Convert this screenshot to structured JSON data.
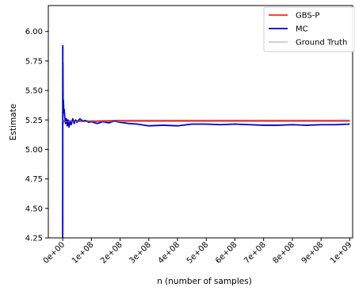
{
  "chart_data": {
    "type": "line",
    "title": "",
    "xlabel": "n (number of samples)",
    "ylabel": "Estimate",
    "xlim": [
      -50000000,
      1010000000
    ],
    "ylim": [
      4.25,
      6.22
    ],
    "grid": false,
    "legend_position": "top-right",
    "x_ticks": [
      0,
      100000000,
      200000000,
      300000000,
      400000000,
      500000000,
      600000000,
      700000000,
      800000000,
      900000000,
      1000000000
    ],
    "x_tick_labels": [
      "0e+00",
      "1e+08",
      "2e+08",
      "3e+08",
      "4e+08",
      "5e+08",
      "6e+08",
      "7e+08",
      "8e+08",
      "9e+08",
      "1e+09"
    ],
    "y_ticks": [
      4.25,
      4.5,
      4.75,
      5.0,
      5.25,
      5.5,
      5.75,
      6.0
    ],
    "y_tick_labels": [
      "4.25",
      "4.50",
      "4.75",
      "5.00",
      "5.25",
      "5.50",
      "5.75",
      "6.00"
    ],
    "series": [
      {
        "name": "GBS-P",
        "color": "#ff0000",
        "x": [
          0,
          500000,
          1000000,
          2000000,
          3000000,
          5000000,
          10000000,
          30000000,
          60000000,
          100000000,
          200000000,
          300000000,
          500000000,
          700000000,
          1000000000
        ],
        "y": [
          5.21,
          5.24,
          5.22,
          5.23,
          5.24,
          5.24,
          5.24,
          5.24,
          5.24,
          5.24,
          5.245,
          5.245,
          5.245,
          5.245,
          5.245
        ]
      },
      {
        "name": "MC",
        "color": "#0000cc",
        "x": [
          0,
          150000,
          300000,
          500000,
          800000,
          1200000,
          1700000,
          2300000,
          3000000,
          4000000,
          5000000,
          7000000,
          10000000,
          13000000,
          16000000,
          19000000,
          22000000,
          26000000,
          30000000,
          35000000,
          40000000,
          45000000,
          50000000,
          60000000,
          70000000,
          80000000,
          90000000,
          100000000,
          120000000,
          140000000,
          160000000,
          180000000,
          200000000,
          230000000,
          260000000,
          300000000,
          350000000,
          400000000,
          450000000,
          500000000,
          550000000,
          600000000,
          650000000,
          700000000,
          750000000,
          800000000,
          850000000,
          900000000,
          950000000,
          1000000000
        ],
        "y": [
          4.25,
          5.05,
          5.88,
          5.6,
          5.73,
          5.45,
          5.32,
          5.42,
          5.38,
          5.31,
          5.34,
          5.28,
          5.22,
          5.26,
          5.2,
          5.25,
          5.19,
          5.24,
          5.21,
          5.26,
          5.22,
          5.25,
          5.23,
          5.26,
          5.24,
          5.245,
          5.23,
          5.235,
          5.22,
          5.235,
          5.225,
          5.24,
          5.23,
          5.22,
          5.215,
          5.2,
          5.205,
          5.2,
          5.215,
          5.215,
          5.21,
          5.215,
          5.21,
          5.205,
          5.205,
          5.21,
          5.205,
          5.21,
          5.21,
          5.215
        ]
      },
      {
        "name": "Ground Truth",
        "color": "#808080",
        "x": [
          0,
          1000000000
        ],
        "y": [
          5.235,
          5.235
        ]
      }
    ]
  }
}
